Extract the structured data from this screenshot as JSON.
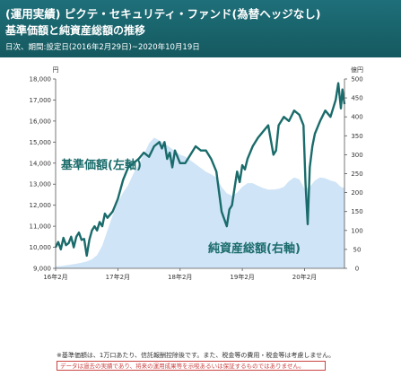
{
  "header": {
    "title": "(運用実績) ピクテ・セキュリティ・ファンド(為替ヘッジなし)",
    "subtitle": "基準価額と純資産総額の推移",
    "period": "日次、期間:設定日(2016年2月29日)~2020年10月19日"
  },
  "chart_data": {
    "type": "line",
    "left_unit": "円",
    "right_unit": "億円",
    "x_ticks": [
      "16年2月",
      "17年2月",
      "18年2月",
      "19年2月",
      "20年2月"
    ],
    "x_range": [
      0,
      55.7
    ],
    "y_left_range": [
      9000,
      18000
    ],
    "y_left_ticks": [
      "9,000",
      "10,000",
      "11,000",
      "12,000",
      "13,000",
      "14,000",
      "15,000",
      "16,000",
      "17,000",
      "18,000"
    ],
    "y_right_range": [
      0,
      500
    ],
    "y_right_ticks": [
      "0",
      "50",
      "100",
      "150",
      "200",
      "250",
      "300",
      "350",
      "400",
      "450",
      "500"
    ],
    "grid": false,
    "series": [
      {
        "name": "基準価額(左軸)",
        "axis": "left",
        "color": "#1a6b6b",
        "x": [
          0,
          0.5,
          1,
          1.5,
          2,
          2.5,
          3,
          3.5,
          4,
          4.5,
          5,
          5.5,
          6,
          6.5,
          7,
          7.5,
          8,
          8.5,
          9,
          9.5,
          10,
          11,
          12,
          13,
          14,
          15,
          16,
          17,
          18,
          19,
          20,
          20.5,
          21,
          21.5,
          22,
          22.5,
          23,
          24,
          25,
          26,
          27,
          28,
          29,
          30,
          31,
          32,
          33,
          33.5,
          34,
          34.5,
          35,
          35.5,
          36,
          36.5,
          37,
          38,
          39,
          40,
          41,
          42,
          42.5,
          43,
          44,
          45,
          46,
          47,
          47.8,
          48.2,
          48.6,
          49,
          49.5,
          50,
          51,
          52,
          53,
          54,
          54.5,
          55,
          55.3,
          55.7
        ],
        "values": [
          10000,
          10250,
          9900,
          10450,
          10100,
          10200,
          10500,
          10000,
          10500,
          10700,
          10350,
          10400,
          9600,
          10350,
          10800,
          11000,
          10800,
          11200,
          11000,
          11600,
          11400,
          11700,
          12300,
          13200,
          13800,
          14000,
          14200,
          14500,
          14300,
          14800,
          15000,
          14700,
          15000,
          14200,
          14500,
          13800,
          14600,
          14000,
          14000,
          14400,
          14800,
          14600,
          14600,
          14200,
          13600,
          11700,
          11000,
          11800,
          12000,
          12800,
          13600,
          13100,
          13900,
          13700,
          14200,
          14800,
          15200,
          15500,
          15800,
          14400,
          14600,
          15800,
          16200,
          16000,
          16500,
          16300,
          15800,
          13000,
          11100,
          13800,
          14800,
          15400,
          16000,
          16500,
          16200,
          17000,
          17800,
          16600,
          17500,
          16800
        ]
      },
      {
        "name": "純資産総額(右軸)",
        "axis": "right",
        "color": "#cfe4f7",
        "x": [
          0,
          1,
          2,
          3,
          4,
          5,
          6,
          7,
          8,
          9,
          10,
          11,
          12,
          13,
          14,
          15,
          16,
          17,
          18,
          19,
          20,
          21,
          22,
          23,
          24,
          25,
          26,
          27,
          28,
          29,
          30,
          31,
          32,
          33,
          34,
          35,
          36,
          37,
          38,
          39,
          40,
          41,
          42,
          43,
          44,
          45,
          46,
          47,
          48,
          49,
          50,
          51,
          52,
          53,
          54,
          55,
          55.7
        ],
        "values": [
          5,
          6,
          8,
          10,
          12,
          15,
          18,
          24,
          35,
          60,
          100,
          140,
          175,
          200,
          220,
          250,
          275,
          300,
          330,
          345,
          338,
          330,
          320,
          310,
          300,
          295,
          285,
          275,
          265,
          255,
          248,
          240,
          215,
          198,
          192,
          200,
          215,
          225,
          225,
          218,
          212,
          208,
          208,
          210,
          215,
          230,
          240,
          235,
          210,
          215,
          232,
          240,
          238,
          232,
          228,
          215,
          212
        ]
      }
    ]
  },
  "notes": {
    "note1": "※基準価額は、1万口あたり、信託報酬控除後です。また、税金等の費用・税金等は考慮しません。",
    "note2": "データは過去の実績であり、将来の運用成果等を示唆あるいは保証するものではありません。"
  }
}
